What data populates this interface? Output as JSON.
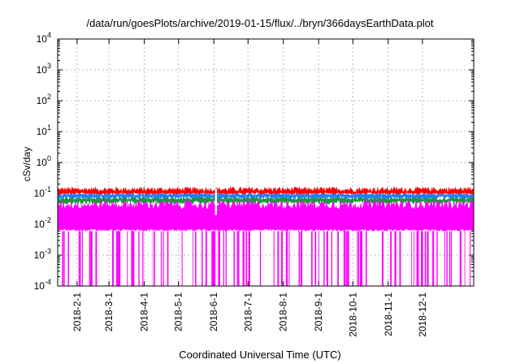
{
  "chart_data": {
    "type": "line",
    "title": "/data/run/goesPlots/archive/2019-01-15/flux/../bryn/366daysEarthData.plot",
    "xlabel": "Coordinated Universal Time (UTC)",
    "ylabel": "cSv/day",
    "yscale": "log",
    "ylim": [
      0.0001,
      10000
    ],
    "xlim": [
      "2018-01-15",
      "2019-01-15"
    ],
    "y_ticks": [
      {
        "base": "10",
        "exp": "-4",
        "value": 0.0001
      },
      {
        "base": "10",
        "exp": "-3",
        "value": 0.001
      },
      {
        "base": "10",
        "exp": "-2",
        "value": 0.01
      },
      {
        "base": "10",
        "exp": "-1",
        "value": 0.1
      },
      {
        "base": "10",
        "exp": "0",
        "value": 1
      },
      {
        "base": "10",
        "exp": "1",
        "value": 10
      },
      {
        "base": "10",
        "exp": "2",
        "value": 100
      },
      {
        "base": "10",
        "exp": "3",
        "value": 1000
      },
      {
        "base": "10",
        "exp": "4",
        "value": 10000
      }
    ],
    "x_ticks": [
      {
        "label": "2018-2-1",
        "date": "2018-02-01"
      },
      {
        "label": "2018-3-1",
        "date": "2018-03-01"
      },
      {
        "label": "2018-4-1",
        "date": "2018-04-01"
      },
      {
        "label": "2018-5-1",
        "date": "2018-05-01"
      },
      {
        "label": "2018-6-1",
        "date": "2018-06-01"
      },
      {
        "label": "2018-7-1",
        "date": "2018-07-01"
      },
      {
        "label": "2018-8-1",
        "date": "2018-08-01"
      },
      {
        "label": "2018-9-1",
        "date": "2018-09-01"
      },
      {
        "label": "2018-10-1",
        "date": "2018-10-01"
      },
      {
        "label": "2018-11-1",
        "date": "2018-11-01"
      },
      {
        "label": "2018-12-1",
        "date": "2018-12-01"
      }
    ],
    "grid": true,
    "series": [
      {
        "color": "#ff0000",
        "typical_value": 0.11,
        "range": [
          0.09,
          0.16
        ]
      },
      {
        "color": "#1e7fff",
        "typical_value": 0.085,
        "range": [
          0.06,
          0.1
        ]
      },
      {
        "color": "#1a9a3a",
        "typical_value": 0.06,
        "range": [
          0.045,
          0.075
        ]
      },
      {
        "color": "#ff00ff",
        "typical_value": 0.03,
        "range": [
          0.0001,
          0.06
        ],
        "baseline": 0.006
      }
    ]
  }
}
